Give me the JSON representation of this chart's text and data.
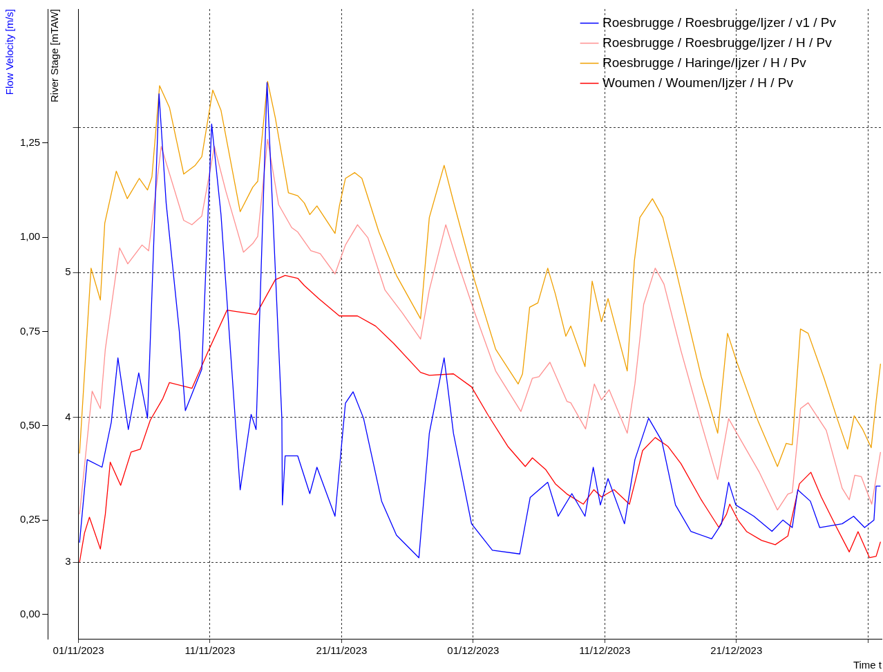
{
  "chart_data": {
    "type": "line",
    "ylabel": "River Stage [mTAW]",
    "y2label": "Flow Velocity [m/s]",
    "xlabel": "Time t",
    "xlim": [
      "2023-11-01",
      "2024-01-01T01:00"
    ],
    "xticks": [
      {
        "value": "2023-11-01",
        "label": "01/11/2023"
      },
      {
        "value": "2023-11-11",
        "label": "11/11/2023"
      },
      {
        "value": "2023-11-21",
        "label": "21/11/2023"
      },
      {
        "value": "2023-12-01",
        "label": "01/12/2023"
      },
      {
        "value": "2023-12-11",
        "label": "11/12/2023"
      },
      {
        "value": "2023-12-21",
        "label": "21/12/2023"
      },
      {
        "value": "2023-12-31",
        "label": null
      }
    ],
    "ylim": [
      2.47,
      6.82
    ],
    "yticks": [
      3,
      4,
      5,
      {
        "value": 6,
        "label": null
      }
    ],
    "y2lim": [
      -0.065,
      1.605
    ],
    "y2ticks": [
      {
        "value": 0,
        "label": "0,00"
      },
      {
        "value": 0.25,
        "label": "0,25"
      },
      {
        "value": 0.5,
        "label": "0,50"
      },
      {
        "value": 0.75,
        "label": "0,75"
      },
      {
        "value": 1,
        "label": "1,00"
      },
      {
        "value": 1.25,
        "label": "1,25"
      }
    ],
    "grid": true,
    "legend": "top right",
    "marker": "none",
    "series": [
      {
        "name": "Woumen / Woumen/Ijzer / H / Pv",
        "color": "#ff0000",
        "x": [
          "2023-11-01T02:00",
          "2023-11-01T11:00",
          "2023-11-01T20:00",
          "2023-11-02T16:00",
          "2023-11-03T01:00",
          "2023-11-03T10:00",
          "2023-11-04T05:00",
          "2023-11-05T00:00",
          "2023-11-05T17:00",
          "2023-11-06T11:00",
          "2023-11-07T10:00",
          "2023-11-07T22:00",
          "2023-11-09T15:00",
          "2023-11-10T20:00",
          "2023-11-12T07:00",
          "2023-11-14T12:00",
          "2023-11-15T23:00",
          "2023-11-16T17:00",
          "2023-11-17T16:00",
          "2023-11-18T04:00",
          "2023-11-19T06:00",
          "2023-11-20T20:00",
          "2023-11-22T05:00",
          "2023-11-23T14:00",
          "2023-11-24T23:00",
          "2023-11-27T00:00",
          "2023-11-27T16:00",
          "2023-11-29T12:00",
          "2023-11-30T21:00",
          "2023-12-02T04:00",
          "2023-12-03T15:00",
          "2023-12-04T23:00",
          "2023-12-05T12:00",
          "2023-12-06T12:00",
          "2023-12-07T06:00",
          "2023-12-08T03:00",
          "2023-12-09T09:00",
          "2023-12-10T04:00",
          "2023-12-10T18:00",
          "2023-12-11T17:00",
          "2023-12-12T21:00",
          "2023-12-13T07:00",
          "2023-12-13T21:00",
          "2023-12-14T20:00",
          "2023-12-15T19:00",
          "2023-12-16T19:00",
          "2023-12-18T08:00",
          "2023-12-19T16:00",
          "2023-12-20T06:00",
          "2023-12-20T12:00",
          "2023-12-21T03:00",
          "2023-12-21T19:00",
          "2023-12-22T22:00",
          "2023-12-23T23:00",
          "2023-12-24T22:00",
          "2023-12-25T19:00",
          "2023-12-26T16:00",
          "2023-12-27T11:00",
          "2023-12-28T12:00",
          "2023-12-29T14:00",
          "2023-12-30T06:00",
          "2023-12-31T03:00",
          "2023-12-31T15:00",
          "2023-12-31T23:00"
        ],
        "values": [
          3.0,
          3.2,
          3.31,
          3.09,
          3.33,
          3.69,
          3.53,
          3.76,
          3.78,
          3.98,
          4.13,
          4.24,
          4.2,
          4.45,
          4.74,
          4.71,
          4.95,
          4.98,
          4.96,
          4.91,
          4.82,
          4.7,
          4.7,
          4.63,
          4.51,
          4.31,
          4.29,
          4.3,
          4.21,
          4.01,
          3.8,
          3.66,
          3.72,
          3.64,
          3.54,
          3.47,
          3.4,
          3.5,
          3.45,
          3.5,
          3.4,
          3.55,
          3.77,
          3.86,
          3.8,
          3.68,
          3.43,
          3.24,
          3.33,
          3.4,
          3.29,
          3.21,
          3.15,
          3.12,
          3.18,
          3.54,
          3.62,
          3.45,
          3.26,
          3.07,
          3.21,
          3.03,
          3.04,
          3.14
        ]
      },
      {
        "name": "Roesbrugge / Haringe/Ijzer / H / Pv",
        "color": "#f0a000",
        "x": [
          "2023-11-01T02:00",
          "2023-11-01T23:00",
          "2023-11-02T16:00",
          "2023-11-03T00:00",
          "2023-11-03T21:00",
          "2023-11-04T17:00",
          "2023-11-05T15:00",
          "2023-11-06T06:00",
          "2023-11-06T14:00",
          "2023-11-07T04:00",
          "2023-11-07T22:00",
          "2023-11-09T00:00",
          "2023-11-09T21:00",
          "2023-11-10T09:00",
          "2023-11-11T05:00",
          "2023-11-11T20:00",
          "2023-11-13T07:00",
          "2023-11-14T06:00",
          "2023-11-14T15:00",
          "2023-11-15T09:00",
          "2023-11-15T23:00",
          "2023-11-16T23:00",
          "2023-11-17T16:00",
          "2023-11-18T04:00",
          "2023-11-18T14:00",
          "2023-11-19T03:00",
          "2023-11-20T12:00",
          "2023-11-20T20:00",
          "2023-11-21T07:00",
          "2023-11-22T00:00",
          "2023-11-22T13:00",
          "2023-11-23T20:00",
          "2023-11-25T04:00",
          "2023-11-27T00:00",
          "2023-11-27T16:00",
          "2023-11-28T19:00",
          "2023-11-29T12:00",
          "2023-12-01T03:00",
          "2023-12-02T17:00",
          "2023-12-04T10:00",
          "2023-12-04T18:00",
          "2023-12-05T07:00",
          "2023-12-05T22:00",
          "2023-12-06T16:00",
          "2023-12-07T06:00",
          "2023-12-08T01:00",
          "2023-12-08T10:00",
          "2023-12-09T12:00",
          "2023-12-10T01:00",
          "2023-12-10T18:00",
          "2023-12-11T06:00",
          "2023-12-12T17:00",
          "2023-12-13T06:00",
          "2023-12-13T16:00",
          "2023-12-14T15:00",
          "2023-12-15T10:00",
          "2023-12-16T09:00",
          "2023-12-18T08:00",
          "2023-12-19T14:00",
          "2023-12-20T08:00",
          "2023-12-21T01:00",
          "2023-12-22T16:00",
          "2023-12-24T03:00",
          "2023-12-24T19:00",
          "2023-12-25T06:00",
          "2023-12-25T21:00",
          "2023-12-26T11:00",
          "2023-12-27T16:00",
          "2023-12-28T16:00",
          "2023-12-29T11:00",
          "2023-12-29T23:00",
          "2023-12-30T14:00",
          "2023-12-31T06:00",
          "2023-12-31T15:00",
          "2023-12-31T23:00"
        ],
        "values": [
          3.75,
          5.03,
          4.81,
          5.34,
          5.7,
          5.51,
          5.65,
          5.57,
          5.66,
          6.29,
          6.14,
          5.68,
          5.74,
          5.8,
          6.26,
          6.12,
          5.42,
          5.59,
          5.63,
          6.32,
          6.07,
          5.55,
          5.53,
          5.48,
          5.4,
          5.46,
          5.27,
          5.46,
          5.65,
          5.69,
          5.65,
          5.28,
          4.98,
          4.68,
          5.38,
          5.74,
          5.49,
          4.94,
          4.47,
          4.23,
          4.3,
          4.76,
          4.79,
          5.03,
          4.85,
          4.56,
          4.63,
          4.35,
          4.94,
          4.66,
          4.82,
          4.32,
          5.08,
          5.38,
          5.51,
          5.38,
          5.03,
          4.28,
          3.89,
          4.58,
          4.38,
          3.97,
          3.66,
          3.82,
          3.81,
          4.61,
          4.58,
          4.27,
          3.99,
          3.78,
          4.01,
          3.92,
          3.79,
          4.11,
          4.37
        ]
      },
      {
        "name": "Roesbrugge / Roesbrugge/Ijzer / H / Pv",
        "color": "#ff9090",
        "x": [
          "2023-11-01T02:00",
          "2023-11-02T01:00",
          "2023-11-02T16:00",
          "2023-11-03T01:00",
          "2023-11-04T03:00",
          "2023-11-04T18:00",
          "2023-11-05T20:00",
          "2023-11-06T08:00",
          "2023-11-07T07:00",
          "2023-11-09T00:00",
          "2023-11-09T15:00",
          "2023-11-10T09:00",
          "2023-11-11T08:00",
          "2023-11-12T05:00",
          "2023-11-13T13:00",
          "2023-11-14T06:00",
          "2023-11-14T15:00",
          "2023-11-15T09:00",
          "2023-11-16T05:00",
          "2023-11-17T05:00",
          "2023-11-17T16:00",
          "2023-11-18T16:00",
          "2023-11-19T09:00",
          "2023-11-20T12:00",
          "2023-11-21T07:00",
          "2023-11-22T05:00",
          "2023-11-23T00:00",
          "2023-11-24T07:00",
          "2023-11-25T15:00",
          "2023-11-27T00:00",
          "2023-11-27T16:00",
          "2023-11-28T22:00",
          "2023-11-29T18:00",
          "2023-12-01T03:00",
          "2023-12-02T17:00",
          "2023-12-04T15:00",
          "2023-12-05T12:00",
          "2023-12-06T00:00",
          "2023-12-06T20:00",
          "2023-12-08T03:00",
          "2023-12-08T10:00",
          "2023-12-09T13:00",
          "2023-12-10T05:00",
          "2023-12-10T18:00",
          "2023-12-11T08:00",
          "2023-12-12T17:00",
          "2023-12-13T07:00",
          "2023-12-13T23:00",
          "2023-12-14T20:00",
          "2023-12-15T12:00",
          "2023-12-16T19:00",
          "2023-12-18T08:00",
          "2023-12-19T14:00",
          "2023-12-20T10:00",
          "2023-12-21T01:00",
          "2023-12-22T18:00",
          "2023-12-24T03:00",
          "2023-12-24T22:00",
          "2023-12-25T06:00",
          "2023-12-25T21:00",
          "2023-12-26T11:00",
          "2023-12-27T20:00",
          "2023-12-29T01:00",
          "2023-12-29T14:00",
          "2023-12-30T00:00",
          "2023-12-30T12:00",
          "2023-12-31T07:00",
          "2023-12-31T23:00"
        ],
        "values": [
          3.33,
          4.18,
          4.06,
          4.47,
          5.17,
          5.06,
          5.19,
          5.15,
          5.87,
          5.36,
          5.33,
          5.39,
          5.87,
          5.56,
          5.14,
          5.2,
          5.25,
          5.92,
          5.47,
          5.31,
          5.28,
          5.15,
          5.13,
          4.99,
          5.19,
          5.33,
          5.24,
          4.88,
          4.72,
          4.54,
          4.88,
          5.33,
          5.09,
          4.72,
          4.32,
          4.04,
          4.27,
          4.28,
          4.38,
          4.11,
          4.1,
          3.92,
          4.23,
          4.12,
          4.19,
          3.89,
          4.23,
          4.78,
          5.03,
          4.92,
          4.46,
          3.96,
          3.57,
          3.99,
          3.89,
          3.62,
          3.36,
          3.47,
          3.48,
          4.06,
          4.1,
          3.91,
          3.51,
          3.43,
          3.6,
          3.59,
          3.4,
          3.76
        ]
      },
      {
        "name": "Roesbrugge / Roesbrugge/Ijzer / v1 / Pv",
        "color": "#0000ff",
        "axis": "y2",
        "x": [
          "2023-11-01T02:00",
          "2023-11-01T16:00",
          "2023-11-02T19:00",
          "2023-11-03T12:00",
          "2023-11-04T00:00",
          "2023-11-04T19:00",
          "2023-11-05T14:00",
          "2023-11-06T06:00",
          "2023-11-07T03:00",
          "2023-11-07T16:00",
          "2023-11-08T16:00",
          "2023-11-09T03:00",
          "2023-11-10T09:00",
          "2023-11-11T03:00",
          "2023-11-11T20:00",
          "2023-11-13T07:00",
          "2023-11-14T03:00",
          "2023-11-14T12:00",
          "2023-11-15T08:00",
          "2023-11-16T11:00",
          "2023-11-16T12:00",
          "2023-11-16T17:00",
          "2023-11-17T16:00",
          "2023-11-18T14:00",
          "2023-11-19T03:00",
          "2023-11-20T12:00",
          "2023-11-21T07:00",
          "2023-11-21T21:00",
          "2023-11-22T16:00",
          "2023-11-24T01:00",
          "2023-11-25T04:00",
          "2023-11-26T21:00",
          "2023-11-27T16:00",
          "2023-11-28T19:00",
          "2023-11-29T12:00",
          "2023-11-30T21:00",
          "2023-12-02T11:00",
          "2023-12-04T13:00",
          "2023-12-05T08:00",
          "2023-12-06T16:00",
          "2023-12-07T11:00",
          "2023-12-08T12:00",
          "2023-12-09T12:00",
          "2023-12-10T03:00",
          "2023-12-10T16:00",
          "2023-12-11T06:00",
          "2023-12-12T12:00",
          "2023-12-13T07:00",
          "2023-12-14T08:00",
          "2023-12-15T08:00",
          "2023-12-16T09:00",
          "2023-12-17T13:00",
          "2023-12-19T03:00",
          "2023-12-19T21:00",
          "2023-12-20T10:00",
          "2023-12-20T23:00",
          "2023-12-22T08:00",
          "2023-12-23T17:00",
          "2023-12-24T13:00",
          "2023-12-25T06:00",
          "2023-12-25T16:00",
          "2023-12-26T15:00",
          "2023-12-27T08:00",
          "2023-12-29T01:00",
          "2023-12-29T22:00",
          "2023-12-30T18:00",
          "2023-12-31T11:00",
          "2023-12-31T15:00",
          "2023-12-31T23:00"
        ],
        "values": [
          0.19,
          0.41,
          0.39,
          0.51,
          0.68,
          0.49,
          0.64,
          0.52,
          1.38,
          1.09,
          0.75,
          0.54,
          0.65,
          1.3,
          1.06,
          0.33,
          0.53,
          0.49,
          1.41,
          0.52,
          0.29,
          0.42,
          0.42,
          0.32,
          0.39,
          0.26,
          0.56,
          0.59,
          0.52,
          0.3,
          0.21,
          0.15,
          0.48,
          0.68,
          0.48,
          0.24,
          0.17,
          0.16,
          0.31,
          0.35,
          0.26,
          0.32,
          0.26,
          0.39,
          0.29,
          0.36,
          0.24,
          0.41,
          0.52,
          0.46,
          0.29,
          0.22,
          0.2,
          0.24,
          0.35,
          0.29,
          0.26,
          0.22,
          0.25,
          0.23,
          0.33,
          0.3,
          0.23,
          0.24,
          0.26,
          0.23,
          0.25,
          0.34,
          0.34
        ]
      }
    ]
  }
}
